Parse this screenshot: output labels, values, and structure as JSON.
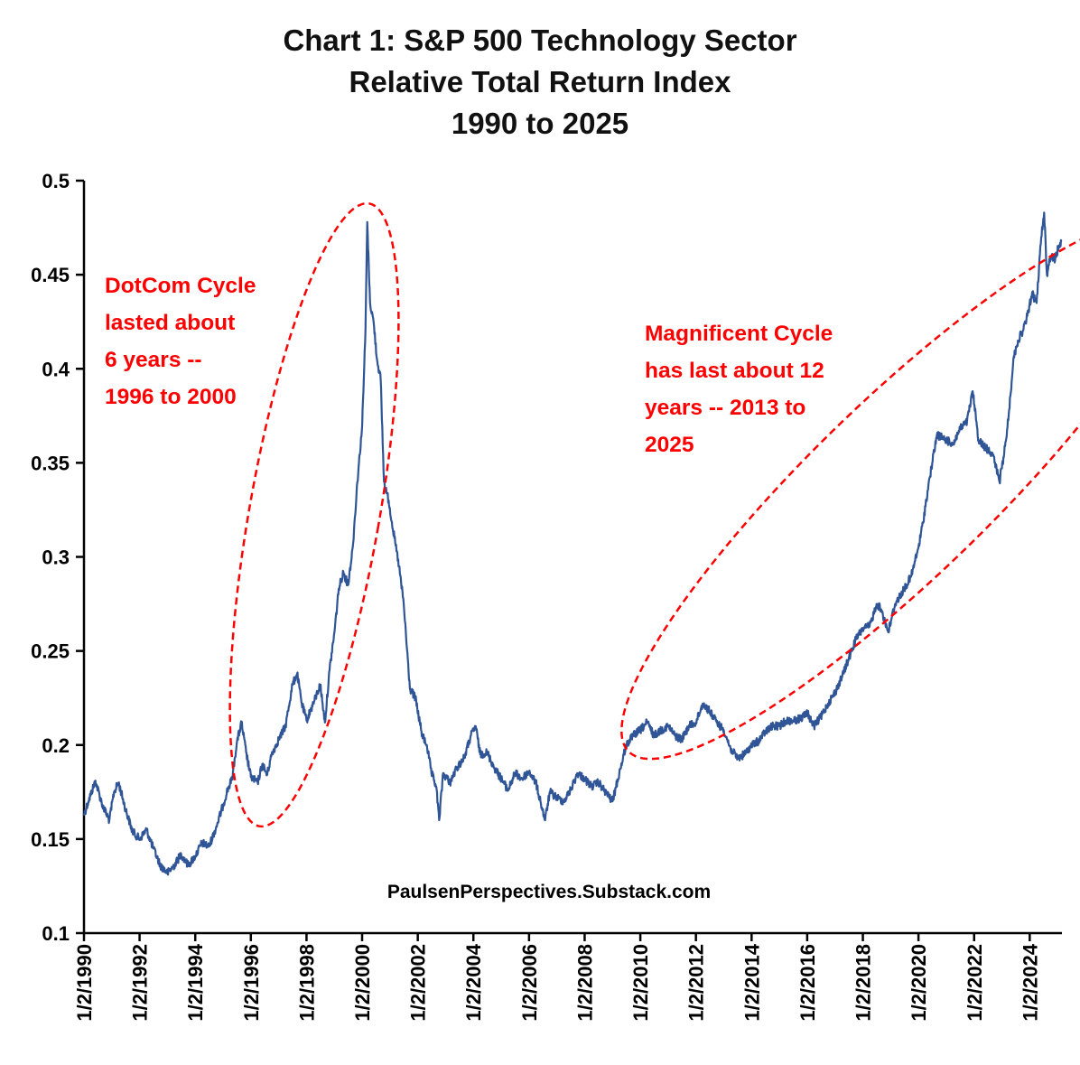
{
  "chart_data": {
    "type": "line",
    "title_lines": [
      "Chart 1: S&P 500 Technology Sector",
      "Relative Total Return Index",
      "1990 to 2025"
    ],
    "xlabel": "",
    "ylabel": "",
    "ylim": [
      0.1,
      0.5
    ],
    "xlim": [
      "1990-01-02",
      "2025-02-28"
    ],
    "y_ticks": [
      "0.1",
      "0.15",
      "0.2",
      "0.25",
      "0.3",
      "0.35",
      "0.4",
      "0.45",
      "0.5"
    ],
    "x_ticks": [
      {
        "date": "1990-01-02",
        "label": "1/2/1990"
      },
      {
        "date": "1992-01-02",
        "label": "1/2/1992"
      },
      {
        "date": "1994-01-02",
        "label": "1/2/1994"
      },
      {
        "date": "1996-01-02",
        "label": "1/2/1996"
      },
      {
        "date": "1998-01-02",
        "label": "1/2/1998"
      },
      {
        "date": "2000-01-02",
        "label": "1/2/2000"
      },
      {
        "date": "2002-01-02",
        "label": "1/2/2002"
      },
      {
        "date": "2004-01-02",
        "label": "1/2/2004"
      },
      {
        "date": "2006-01-02",
        "label": "1/2/2006"
      },
      {
        "date": "2008-01-02",
        "label": "1/2/2008"
      },
      {
        "date": "2010-01-02",
        "label": "1/2/2010"
      },
      {
        "date": "2012-01-02",
        "label": "1/2/2012"
      },
      {
        "date": "2014-01-02",
        "label": "1/2/2014"
      },
      {
        "date": "2016-01-02",
        "label": "1/2/2016"
      },
      {
        "date": "2018-01-02",
        "label": "1/2/2018"
      },
      {
        "date": "2020-01-02",
        "label": "1/2/2020"
      },
      {
        "date": "2022-01-02",
        "label": "1/2/2022"
      },
      {
        "date": "2024-01-02",
        "label": "1/2/2024"
      }
    ],
    "grid": false,
    "legend": "none",
    "series": [
      {
        "color": "#2f5597",
        "points": [
          [
            "1990-01-02",
            0.163
          ],
          [
            "1990-03-01",
            0.17
          ],
          [
            "1990-06-01",
            0.181
          ],
          [
            "1990-09-01",
            0.168
          ],
          [
            "1990-12-01",
            0.16
          ],
          [
            "1991-02-01",
            0.175
          ],
          [
            "1991-04-01",
            0.18
          ],
          [
            "1991-07-01",
            0.166
          ],
          [
            "1991-10-01",
            0.154
          ],
          [
            "1992-01-02",
            0.15
          ],
          [
            "1992-04-01",
            0.155
          ],
          [
            "1992-07-01",
            0.145
          ],
          [
            "1992-10-01",
            0.136
          ],
          [
            "1993-01-04",
            0.132
          ],
          [
            "1993-04-01",
            0.136
          ],
          [
            "1993-07-01",
            0.142
          ],
          [
            "1993-10-01",
            0.136
          ],
          [
            "1994-01-03",
            0.141
          ],
          [
            "1994-04-01",
            0.148
          ],
          [
            "1994-07-01",
            0.146
          ],
          [
            "1994-10-01",
            0.156
          ],
          [
            "1995-01-03",
            0.168
          ],
          [
            "1995-03-01",
            0.176
          ],
          [
            "1995-05-01",
            0.182
          ],
          [
            "1995-07-01",
            0.201
          ],
          [
            "1995-09-01",
            0.212
          ],
          [
            "1995-11-01",
            0.196
          ],
          [
            "1996-01-02",
            0.183
          ],
          [
            "1996-04-01",
            0.18
          ],
          [
            "1996-06-01",
            0.19
          ],
          [
            "1996-08-01",
            0.184
          ],
          [
            "1996-10-01",
            0.195
          ],
          [
            "1997-01-02",
            0.203
          ],
          [
            "1997-04-01",
            0.21
          ],
          [
            "1997-07-01",
            0.232
          ],
          [
            "1997-09-01",
            0.238
          ],
          [
            "1997-11-01",
            0.222
          ],
          [
            "1998-01-02",
            0.213
          ],
          [
            "1998-04-01",
            0.222
          ],
          [
            "1998-07-01",
            0.232
          ],
          [
            "1998-09-01",
            0.212
          ],
          [
            "1998-11-01",
            0.24
          ],
          [
            "1999-01-04",
            0.26
          ],
          [
            "1999-03-01",
            0.283
          ],
          [
            "1999-05-01",
            0.292
          ],
          [
            "1999-07-01",
            0.285
          ],
          [
            "1999-09-01",
            0.305
          ],
          [
            "1999-11-01",
            0.34
          ],
          [
            "2000-01-03",
            0.37
          ],
          [
            "2000-02-15",
            0.42
          ],
          [
            "2000-03-10",
            0.478
          ],
          [
            "2000-04-15",
            0.435
          ],
          [
            "2000-06-01",
            0.425
          ],
          [
            "2000-07-15",
            0.405
          ],
          [
            "2000-09-01",
            0.395
          ],
          [
            "2000-10-15",
            0.34
          ],
          [
            "2000-12-15",
            0.33
          ],
          [
            "2001-03-01",
            0.31
          ],
          [
            "2001-05-01",
            0.295
          ],
          [
            "2001-07-01",
            0.275
          ],
          [
            "2001-09-20",
            0.23
          ],
          [
            "2001-12-01",
            0.225
          ],
          [
            "2002-03-01",
            0.205
          ],
          [
            "2002-05-01",
            0.2
          ],
          [
            "2002-07-01",
            0.185
          ],
          [
            "2002-09-01",
            0.178
          ],
          [
            "2002-10-09",
            0.16
          ],
          [
            "2002-12-01",
            0.185
          ],
          [
            "2003-03-01",
            0.18
          ],
          [
            "2003-06-01",
            0.188
          ],
          [
            "2003-09-01",
            0.193
          ],
          [
            "2003-12-01",
            0.205
          ],
          [
            "2004-02-01",
            0.21
          ],
          [
            "2004-04-01",
            0.195
          ],
          [
            "2004-07-01",
            0.196
          ],
          [
            "2004-10-01",
            0.188
          ],
          [
            "2005-01-03",
            0.182
          ],
          [
            "2005-04-01",
            0.176
          ],
          [
            "2005-07-01",
            0.185
          ],
          [
            "2005-10-01",
            0.182
          ],
          [
            "2006-01-03",
            0.186
          ],
          [
            "2006-04-01",
            0.18
          ],
          [
            "2006-06-01",
            0.17
          ],
          [
            "2006-08-01",
            0.16
          ],
          [
            "2006-10-01",
            0.175
          ],
          [
            "2007-01-03",
            0.172
          ],
          [
            "2007-04-01",
            0.17
          ],
          [
            "2007-07-01",
            0.176
          ],
          [
            "2007-10-01",
            0.185
          ],
          [
            "2008-01-02",
            0.182
          ],
          [
            "2008-04-01",
            0.178
          ],
          [
            "2008-07-01",
            0.18
          ],
          [
            "2008-10-01",
            0.175
          ],
          [
            "2009-01-02",
            0.17
          ],
          [
            "2009-04-01",
            0.185
          ],
          [
            "2009-07-01",
            0.2
          ],
          [
            "2009-10-01",
            0.205
          ],
          [
            "2010-01-04",
            0.208
          ],
          [
            "2010-04-01",
            0.212
          ],
          [
            "2010-07-01",
            0.205
          ],
          [
            "2010-10-01",
            0.208
          ],
          [
            "2011-01-03",
            0.21
          ],
          [
            "2011-04-01",
            0.205
          ],
          [
            "2011-07-01",
            0.203
          ],
          [
            "2011-10-01",
            0.21
          ],
          [
            "2012-01-03",
            0.212
          ],
          [
            "2012-04-01",
            0.222
          ],
          [
            "2012-07-01",
            0.218
          ],
          [
            "2012-10-01",
            0.212
          ],
          [
            "2013-01-02",
            0.208
          ],
          [
            "2013-04-01",
            0.198
          ],
          [
            "2013-07-01",
            0.193
          ],
          [
            "2013-10-01",
            0.195
          ],
          [
            "2014-01-02",
            0.2
          ],
          [
            "2014-04-01",
            0.202
          ],
          [
            "2014-07-01",
            0.207
          ],
          [
            "2014-10-01",
            0.21
          ],
          [
            "2015-01-02",
            0.21
          ],
          [
            "2015-04-01",
            0.213
          ],
          [
            "2015-07-01",
            0.213
          ],
          [
            "2015-10-01",
            0.214
          ],
          [
            "2016-01-04",
            0.217
          ],
          [
            "2016-04-01",
            0.21
          ],
          [
            "2016-07-01",
            0.215
          ],
          [
            "2016-10-01",
            0.222
          ],
          [
            "2017-01-03",
            0.228
          ],
          [
            "2017-04-01",
            0.236
          ],
          [
            "2017-07-01",
            0.246
          ],
          [
            "2017-10-01",
            0.256
          ],
          [
            "2018-01-02",
            0.262
          ],
          [
            "2018-04-01",
            0.263
          ],
          [
            "2018-07-01",
            0.275
          ],
          [
            "2018-09-01",
            0.272
          ],
          [
            "2018-12-01",
            0.26
          ],
          [
            "2019-03-01",
            0.275
          ],
          [
            "2019-07-01",
            0.283
          ],
          [
            "2019-10-01",
            0.29
          ],
          [
            "2020-01-02",
            0.305
          ],
          [
            "2020-03-01",
            0.318
          ],
          [
            "2020-05-01",
            0.335
          ],
          [
            "2020-07-01",
            0.35
          ],
          [
            "2020-09-01",
            0.365
          ],
          [
            "2021-01-04",
            0.362
          ],
          [
            "2021-04-01",
            0.36
          ],
          [
            "2021-07-01",
            0.368
          ],
          [
            "2021-10-01",
            0.372
          ],
          [
            "2021-12-15",
            0.388
          ],
          [
            "2022-03-01",
            0.362
          ],
          [
            "2022-06-01",
            0.358
          ],
          [
            "2022-09-01",
            0.355
          ],
          [
            "2022-12-01",
            0.34
          ],
          [
            "2023-02-01",
            0.355
          ],
          [
            "2023-04-01",
            0.375
          ],
          [
            "2023-06-01",
            0.405
          ],
          [
            "2023-08-01",
            0.415
          ],
          [
            "2023-10-01",
            0.42
          ],
          [
            "2023-12-01",
            0.428
          ],
          [
            "2024-02-01",
            0.44
          ],
          [
            "2024-04-01",
            0.435
          ],
          [
            "2024-06-01",
            0.47
          ],
          [
            "2024-07-10",
            0.483
          ],
          [
            "2024-08-15",
            0.45
          ],
          [
            "2024-10-01",
            0.46
          ],
          [
            "2024-12-01",
            0.458
          ],
          [
            "2025-01-15",
            0.465
          ],
          [
            "2025-02-20",
            0.468
          ]
        ]
      }
    ],
    "annotations": [
      {
        "lines": [
          "DotCom Cycle",
          "lasted about",
          "6 years --",
          "1996 to 2000"
        ],
        "color": "#ff0000"
      },
      {
        "lines": [
          "Magnificent Cycle",
          "has last about 12",
          "years -- 2013 to",
          "2025"
        ],
        "color": "#ff0000"
      }
    ],
    "source_text": "PaulsenPerspectives.Substack.com"
  }
}
